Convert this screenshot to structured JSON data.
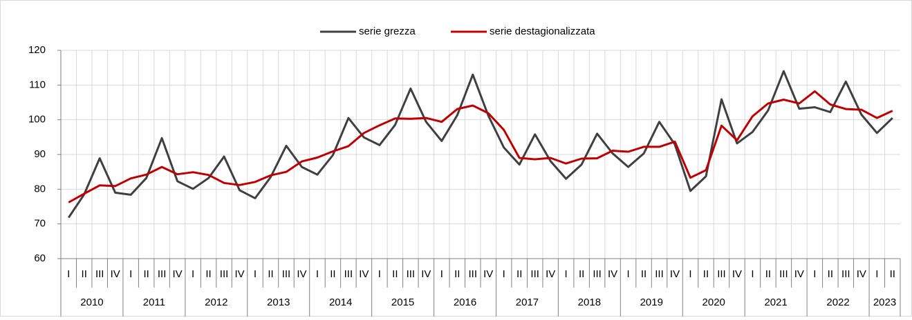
{
  "chart_data": {
    "type": "line",
    "categories": [
      "I",
      "II",
      "III",
      "IV",
      "I",
      "II",
      "III",
      "IV",
      "I",
      "II",
      "III",
      "IV",
      "I",
      "II",
      "III",
      "IV",
      "I",
      "II",
      "III",
      "IV",
      "I",
      "II",
      "III",
      "IV",
      "I",
      "II",
      "III",
      "IV",
      "I",
      "II",
      "III",
      "IV",
      "I",
      "II",
      "III",
      "IV",
      "I",
      "II",
      "III",
      "IV",
      "I",
      "II",
      "III",
      "IV",
      "I",
      "II",
      "III",
      "IV",
      "I",
      "II",
      "III",
      "IV",
      "I",
      "II"
    ],
    "years": [
      "2010",
      "2011",
      "2012",
      "2013",
      "2014",
      "2015",
      "2016",
      "2017",
      "2018",
      "2019",
      "2020",
      "2021",
      "2022",
      "2023"
    ],
    "series": [
      {
        "name": "serie grezza",
        "color": "#3f3f3f",
        "values": [
          71.8,
          78.5,
          88.9,
          79.0,
          78.4,
          83.2,
          94.7,
          82.3,
          80.1,
          83.2,
          89.4,
          79.7,
          77.4,
          83.5,
          92.5,
          86.4,
          84.2,
          89.8,
          100.5,
          94.9,
          92.7,
          98.5,
          109.0,
          99.4,
          93.9,
          101.3,
          113.0,
          101.2,
          92.0,
          87.1,
          95.8,
          88.1,
          83.0,
          87.1,
          96.0,
          90.3,
          86.4,
          90.3,
          99.4,
          92.9,
          79.5,
          83.7,
          105.9,
          93.2,
          96.5,
          102.7,
          114.0,
          103.2,
          103.6,
          102.2,
          111.0,
          101.5,
          96.2,
          100.5
        ]
      },
      {
        "name": "serie destagionalizzata",
        "color": "#c00000",
        "values": [
          76.2,
          78.7,
          81.1,
          80.9,
          83.1,
          84.2,
          86.4,
          84.3,
          84.9,
          84.1,
          81.8,
          81.2,
          82.1,
          84.0,
          85.0,
          88.0,
          89.1,
          90.9,
          92.4,
          96.2,
          98.4,
          100.4,
          100.3,
          100.5,
          99.4,
          103.1,
          104.1,
          101.9,
          97.1,
          89.0,
          88.6,
          89.0,
          87.4,
          88.8,
          88.9,
          91.1,
          90.8,
          92.2,
          92.2,
          93.7,
          83.3,
          85.5,
          98.3,
          94.1,
          101.0,
          104.7,
          105.8,
          104.7,
          108.2,
          104.4,
          103.1,
          102.9,
          100.5,
          102.6
        ]
      }
    ],
    "ylim": [
      60,
      120
    ],
    "yticks": [
      60,
      70,
      80,
      90,
      100,
      110,
      120
    ],
    "grid": true,
    "legend": "top"
  }
}
